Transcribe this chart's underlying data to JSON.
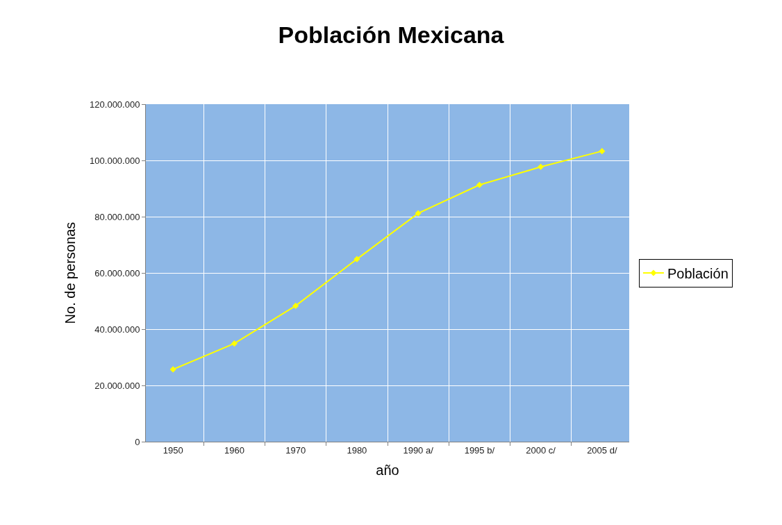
{
  "chart_data": {
    "type": "line",
    "title": "Población Mexicana",
    "xlabel": "año",
    "ylabel": "No. de personas",
    "categories": [
      "1950",
      "1960",
      "1970",
      "1980",
      "1990 a/",
      "1995 b/",
      "2000 c/",
      "2005 d/"
    ],
    "series": [
      {
        "name": "Población",
        "color": "#ffff00",
        "values": [
          25700000,
          34900000,
          48300000,
          64900000,
          81200000,
          91300000,
          97700000,
          103300000
        ]
      }
    ],
    "ylim": [
      0,
      120000000
    ],
    "yticks": [
      0,
      {
        "value": 20000000,
        "label": "20.000.000"
      },
      {
        "value": 40000000,
        "label": "40.000.000"
      },
      {
        "value": 60000000,
        "label": "60.000.000"
      },
      {
        "value": 80000000,
        "label": "80.000.000"
      },
      {
        "value": 100000000,
        "label": "100.000.000"
      },
      {
        "value": 120000000,
        "label": "120.000.000"
      }
    ],
    "grid": true,
    "legend": "right",
    "marker": "diamond",
    "line_style": "solid"
  }
}
